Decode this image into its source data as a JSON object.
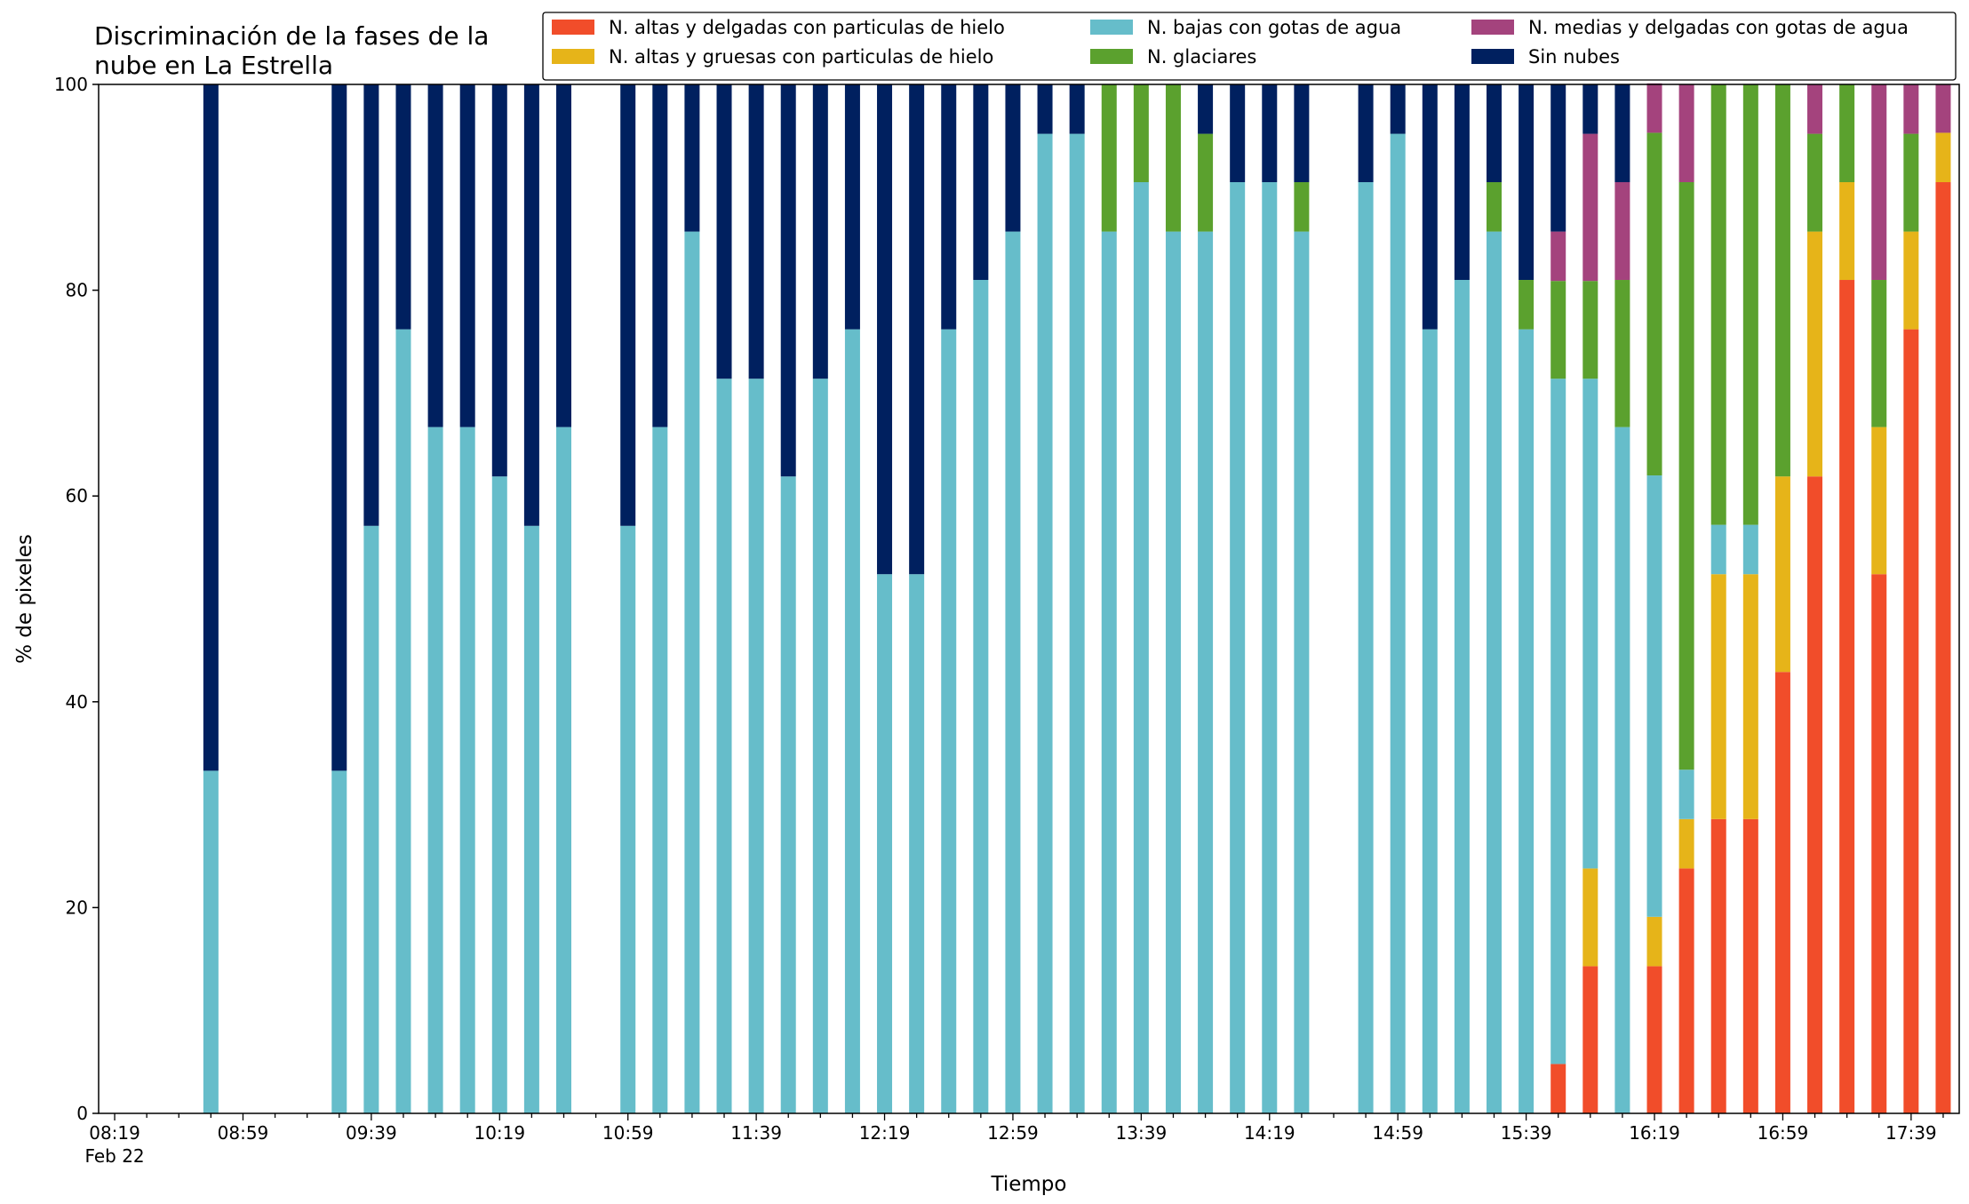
{
  "chart_data": {
    "type": "bar",
    "stacked": true,
    "title_lines": [
      "Discriminación de la fases de la",
      "nube en La Estrella"
    ],
    "xlabel": "Tiempo",
    "ylabel": "% de pixeles",
    "ylim": [
      0,
      100
    ],
    "yticks": [
      "0",
      "20",
      "40",
      "60",
      "80",
      "100"
    ],
    "xtick_labels": [
      "08:19",
      "08:59",
      "09:39",
      "10:19",
      "10:59",
      "11:39",
      "12:19",
      "12:59",
      "13:39",
      "14:19",
      "14:59",
      "15:39",
      "16:19",
      "16:59",
      "17:39"
    ],
    "xtick_sublabel": "Feb 22",
    "x_start": "08:19",
    "x_end": "17:49",
    "x_step_minutes": 10,
    "grid": false,
    "legend_position": "top",
    "series": [
      {
        "name": "N. altas y delgadas con particulas de hielo",
        "color": "#F14D2A"
      },
      {
        "name": "N. altas y gruesas con particulas de hielo",
        "color": "#E6B419"
      },
      {
        "name": "N. bajas con gotas de agua",
        "color": "#66BDCA"
      },
      {
        "name": "N. glaciares",
        "color": "#5BA12E"
      },
      {
        "name": "N. medias y delgadas con gotas de agua",
        "color": "#A4437D"
      },
      {
        "name": "Sin nubes",
        "color": "#00205F"
      }
    ],
    "times": [
      "08:49",
      "09:29",
      "09:39",
      "09:49",
      "09:59",
      "10:09",
      "10:19",
      "10:29",
      "10:39",
      "10:59",
      "11:09",
      "11:19",
      "11:29",
      "11:39",
      "11:49",
      "11:59",
      "12:09",
      "12:19",
      "12:29",
      "12:39",
      "12:49",
      "12:59",
      "13:09",
      "13:19",
      "13:29",
      "13:39",
      "13:49",
      "13:59",
      "14:09",
      "14:19",
      "14:29",
      "14:49",
      "14:59",
      "15:09",
      "15:19",
      "15:29",
      "15:39",
      "15:49",
      "15:59",
      "16:09",
      "16:19",
      "16:29",
      "16:39",
      "16:49",
      "16:59",
      "17:09",
      "17:19",
      "17:29",
      "17:39",
      "17:49"
    ],
    "values": [
      [
        0,
        0,
        33.3,
        0,
        0,
        66.7
      ],
      [
        0,
        0,
        33.3,
        0,
        0,
        66.7
      ],
      [
        0,
        0,
        57.1,
        0,
        0,
        42.9
      ],
      [
        0,
        0,
        76.2,
        0,
        0,
        23.8
      ],
      [
        0,
        0,
        66.7,
        0,
        0,
        33.3
      ],
      [
        0,
        0,
        66.7,
        0,
        0,
        33.3
      ],
      [
        0,
        0,
        61.9,
        0,
        0,
        38.1
      ],
      [
        0,
        0,
        57.1,
        0,
        0,
        42.9
      ],
      [
        0,
        0,
        66.7,
        0,
        0,
        33.3
      ],
      [
        0,
        0,
        57.1,
        0,
        0,
        42.9
      ],
      [
        0,
        0,
        66.7,
        0,
        0,
        33.3
      ],
      [
        0,
        0,
        85.7,
        0,
        0,
        14.3
      ],
      [
        0,
        0,
        71.4,
        0,
        0,
        28.6
      ],
      [
        0,
        0,
        71.4,
        0,
        0,
        28.6
      ],
      [
        0,
        0,
        61.9,
        0,
        0,
        38.1
      ],
      [
        0,
        0,
        71.4,
        0,
        0,
        28.6
      ],
      [
        0,
        0,
        76.2,
        0,
        0,
        23.8
      ],
      [
        0,
        0,
        52.4,
        0,
        0,
        47.6
      ],
      [
        0,
        0,
        52.4,
        0,
        0,
        47.6
      ],
      [
        0,
        0,
        76.2,
        0,
        0,
        23.8
      ],
      [
        0,
        0,
        81.0,
        0,
        0,
        19.0
      ],
      [
        0,
        0,
        85.7,
        0,
        0,
        14.3
      ],
      [
        0,
        0,
        95.2,
        0,
        0,
        4.8
      ],
      [
        0,
        0,
        95.2,
        0,
        0,
        4.8
      ],
      [
        0,
        0,
        85.7,
        14.3,
        0,
        0
      ],
      [
        0,
        0,
        90.5,
        9.5,
        0,
        0
      ],
      [
        0,
        0,
        85.7,
        14.3,
        0,
        0
      ],
      [
        0,
        0,
        85.7,
        9.5,
        0,
        4.8
      ],
      [
        0,
        0,
        90.5,
        0,
        0,
        9.5
      ],
      [
        0,
        0,
        90.5,
        0,
        0,
        9.5
      ],
      [
        0,
        0,
        85.7,
        4.8,
        0,
        9.5
      ],
      [
        0,
        0,
        90.5,
        0,
        0,
        9.5
      ],
      [
        0,
        0,
        95.2,
        0,
        0,
        4.8
      ],
      [
        0,
        0,
        76.2,
        0,
        0,
        23.8
      ],
      [
        0,
        0,
        81.0,
        0,
        0,
        19.0
      ],
      [
        0,
        0,
        85.7,
        4.8,
        0,
        9.5
      ],
      [
        0,
        0,
        76.2,
        4.8,
        0,
        19.0
      ],
      [
        4.8,
        0,
        66.6,
        9.5,
        4.8,
        14.3
      ],
      [
        14.3,
        9.5,
        47.6,
        9.5,
        14.3,
        4.8
      ],
      [
        0,
        0,
        66.7,
        14.3,
        9.5,
        9.5
      ],
      [
        14.3,
        4.8,
        42.9,
        33.3,
        4.8,
        0
      ],
      [
        23.8,
        4.8,
        4.8,
        57.1,
        9.5,
        0
      ],
      [
        28.6,
        23.8,
        4.8,
        42.8,
        0,
        0
      ],
      [
        28.6,
        23.8,
        4.8,
        42.8,
        0,
        0
      ],
      [
        42.9,
        19.0,
        0,
        38.1,
        0,
        0
      ],
      [
        61.9,
        23.8,
        0,
        9.5,
        4.8,
        0
      ],
      [
        81.0,
        9.5,
        0,
        9.5,
        0,
        0
      ],
      [
        52.4,
        14.3,
        0,
        14.3,
        19.0,
        0
      ],
      [
        76.2,
        9.5,
        0,
        9.5,
        4.8,
        0
      ],
      [
        90.5,
        4.8,
        0,
        0,
        4.7,
        0
      ]
    ]
  }
}
